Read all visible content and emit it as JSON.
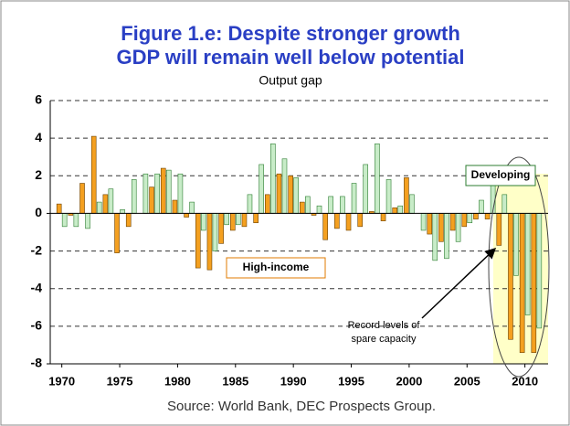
{
  "chart_data": {
    "type": "bar",
    "title": [
      "Figure 1.e: Despite stronger growth",
      "GDP will remain well below potential"
    ],
    "subtitle": "Output gap",
    "source": "Source: World Bank, DEC Prospects Group.",
    "annotation": [
      "Record levels of",
      "spare capacity"
    ],
    "x": [
      1970,
      1971,
      1972,
      1973,
      1974,
      1975,
      1976,
      1977,
      1978,
      1979,
      1980,
      1981,
      1982,
      1983,
      1984,
      1985,
      1986,
      1987,
      1988,
      1989,
      1990,
      1991,
      1992,
      1993,
      1994,
      1995,
      1996,
      1997,
      1998,
      1999,
      2000,
      2001,
      2002,
      2003,
      2004,
      2005,
      2006,
      2007,
      2008,
      2009,
      2010,
      2011
    ],
    "series": [
      {
        "name": "High-income",
        "color": "#f4a020",
        "edge": "#6b4000",
        "values": [
          0.5,
          -0.1,
          1.6,
          4.1,
          1.0,
          -2.1,
          -0.7,
          0.0,
          1.4,
          2.4,
          0.7,
          -0.2,
          -2.9,
          -3.0,
          -1.6,
          -0.9,
          -0.7,
          -0.5,
          1.0,
          2.1,
          2.0,
          0.6,
          -0.1,
          -1.4,
          -0.8,
          -0.9,
          -0.7,
          0.1,
          -0.4,
          0.3,
          1.9,
          0.0,
          -1.1,
          -1.5,
          -0.9,
          -0.7,
          -0.3,
          -0.3,
          -1.7,
          -6.7,
          -7.4,
          -7.4
        ]
      },
      {
        "name": "Developing",
        "color": "#c8ecc8",
        "edge": "#2e7d32",
        "values": [
          -0.7,
          -0.7,
          -0.8,
          0.6,
          1.3,
          0.2,
          1.8,
          2.1,
          2.1,
          2.3,
          2.1,
          0.6,
          -0.9,
          -2.0,
          -0.6,
          -0.6,
          1.0,
          2.6,
          3.7,
          2.9,
          1.9,
          0.9,
          0.4,
          0.9,
          0.9,
          1.6,
          2.6,
          3.7,
          1.8,
          0.4,
          1.0,
          -0.9,
          -2.5,
          -2.4,
          -1.5,
          -0.5,
          0.7,
          1.8,
          1.0,
          -3.3,
          -5.4,
          -6.1
        ]
      }
    ],
    "xlim": [
      1969,
      2012
    ],
    "xticks": [
      1970,
      1975,
      1980,
      1985,
      1990,
      1995,
      2000,
      2005,
      2010
    ],
    "ylim": [
      -8,
      6
    ],
    "yticks": [
      -8,
      -6,
      -4,
      -2,
      0,
      2,
      4,
      6
    ],
    "grid": true
  }
}
